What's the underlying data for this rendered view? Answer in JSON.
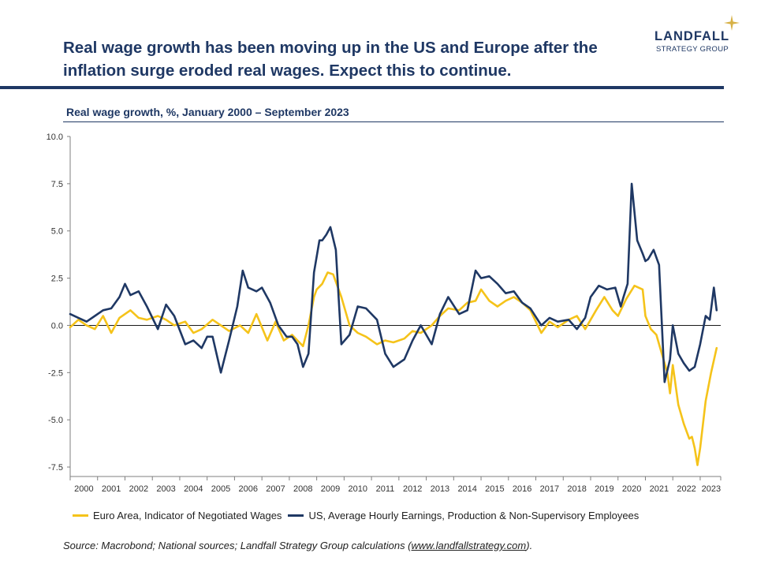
{
  "header": {
    "headline_line1": "Real wage growth has been moving up in the US and Europe after the",
    "headline_line2": "inflation surge eroded real wages.  Expect this to continue.",
    "logo_name": "LANDFALL",
    "logo_sub": "STRATEGY GROUP"
  },
  "colors": {
    "euro": "#f5c31a",
    "us": "#1f3864",
    "title": "#1f3864"
  },
  "chart_data": {
    "type": "line",
    "title": "Real wage growth, %, January 2000 – September 2023",
    "ylim": [
      -8.0,
      10.0
    ],
    "xlim": [
      2000.0,
      2023.75
    ],
    "yticks": [
      10.0,
      7.5,
      5.0,
      2.5,
      0.0,
      -2.5,
      -5.0,
      -7.5
    ],
    "ytick_labels": [
      "10.0",
      "7.5",
      "5.0",
      "2.5",
      "0.0",
      "-2.5",
      "-5.0",
      "-7.5"
    ],
    "xtick_labels": [
      "2000",
      "2001",
      "2002",
      "2003",
      "2004",
      "2005",
      "2006",
      "2007",
      "2008",
      "2009",
      "2010",
      "2011",
      "2012",
      "2013",
      "2014",
      "2015",
      "2016",
      "2017",
      "2018",
      "2019",
      "2020",
      "2021",
      "2022",
      "2023"
    ],
    "legend_position": "bottom",
    "series": [
      {
        "name": "Euro Area, Indicator of Negotiated Wages",
        "color": "#f5c31a",
        "x": [
          2000.0,
          2000.3,
          2000.6,
          2000.9,
          2001.2,
          2001.5,
          2001.8,
          2002.2,
          2002.5,
          2002.8,
          2003.2,
          2003.5,
          2003.8,
          2004.2,
          2004.5,
          2004.8,
          2005.2,
          2005.5,
          2005.8,
          2006.2,
          2006.5,
          2006.8,
          2007.2,
          2007.5,
          2007.8,
          2008.1,
          2008.3,
          2008.5,
          2008.7,
          2008.9,
          2009.0,
          2009.2,
          2009.4,
          2009.6,
          2009.9,
          2010.2,
          2010.5,
          2010.8,
          2011.2,
          2011.5,
          2011.8,
          2012.2,
          2012.5,
          2012.8,
          2013.2,
          2013.5,
          2013.8,
          2014.2,
          2014.5,
          2014.8,
          2015.0,
          2015.3,
          2015.6,
          2015.9,
          2016.2,
          2016.5,
          2016.8,
          2017.2,
          2017.5,
          2017.8,
          2018.2,
          2018.5,
          2018.8,
          2019.2,
          2019.5,
          2019.8,
          2020.0,
          2020.3,
          2020.6,
          2020.9,
          2021.0,
          2021.2,
          2021.4,
          2021.6,
          2021.8,
          2021.9,
          2022.0,
          2022.2,
          2022.4,
          2022.6,
          2022.7,
          2022.8,
          2022.9,
          2023.0,
          2023.2,
          2023.4,
          2023.6
        ],
        "y": [
          -0.1,
          0.3,
          0.0,
          -0.2,
          0.5,
          -0.4,
          0.4,
          0.8,
          0.4,
          0.3,
          0.5,
          0.3,
          0.0,
          0.2,
          -0.4,
          -0.2,
          0.3,
          0.0,
          -0.3,
          0.0,
          -0.4,
          0.6,
          -0.8,
          0.2,
          -0.8,
          -0.5,
          -0.8,
          -1.1,
          0.0,
          1.5,
          1.9,
          2.2,
          2.8,
          2.7,
          1.5,
          0.0,
          -0.4,
          -0.6,
          -1.0,
          -0.8,
          -0.9,
          -0.7,
          -0.3,
          -0.4,
          0.0,
          0.5,
          0.9,
          0.8,
          1.2,
          1.3,
          1.9,
          1.3,
          1.0,
          1.3,
          1.5,
          1.2,
          0.8,
          -0.4,
          0.2,
          -0.1,
          0.3,
          0.5,
          -0.2,
          0.8,
          1.5,
          0.8,
          0.5,
          1.4,
          2.1,
          1.9,
          0.5,
          -0.2,
          -0.5,
          -1.5,
          -2.5,
          -3.6,
          -2.1,
          -4.2,
          -5.2,
          -6.0,
          -5.9,
          -6.5,
          -7.4,
          -6.5,
          -4.0,
          -2.5,
          -1.2
        ]
      },
      {
        "name": "US, Average Hourly Earnings, Production & Non-Supervisory Employees",
        "color": "#1f3864",
        "x": [
          2000.0,
          2000.3,
          2000.6,
          2000.9,
          2001.2,
          2001.5,
          2001.8,
          2002.0,
          2002.2,
          2002.5,
          2002.8,
          2003.2,
          2003.5,
          2003.8,
          2004.2,
          2004.5,
          2004.8,
          2005.0,
          2005.2,
          2005.5,
          2005.8,
          2006.1,
          2006.3,
          2006.5,
          2006.8,
          2007.0,
          2007.3,
          2007.6,
          2007.9,
          2008.1,
          2008.3,
          2008.5,
          2008.7,
          2008.9,
          2009.1,
          2009.2,
          2009.35,
          2009.5,
          2009.7,
          2009.9,
          2010.2,
          2010.5,
          2010.8,
          2011.2,
          2011.5,
          2011.8,
          2012.2,
          2012.5,
          2012.8,
          2013.2,
          2013.5,
          2013.8,
          2014.2,
          2014.5,
          2014.8,
          2015.0,
          2015.3,
          2015.6,
          2015.9,
          2016.2,
          2016.5,
          2016.8,
          2017.2,
          2017.5,
          2017.8,
          2018.2,
          2018.5,
          2018.8,
          2019.0,
          2019.3,
          2019.6,
          2019.9,
          2020.0,
          2020.1,
          2020.2,
          2020.35,
          2020.5,
          2020.7,
          2020.9,
          2021.0,
          2021.1,
          2021.3,
          2021.5,
          2021.7,
          2021.9,
          2022.0,
          2022.2,
          2022.4,
          2022.6,
          2022.8,
          2023.0,
          2023.2,
          2023.35,
          2023.5,
          2023.6
        ],
        "y": [
          0.6,
          0.4,
          0.2,
          0.5,
          0.8,
          0.9,
          1.5,
          2.2,
          1.6,
          1.8,
          1.0,
          -0.2,
          1.1,
          0.5,
          -1.0,
          -0.8,
          -1.2,
          -0.6,
          -0.6,
          -2.5,
          -0.8,
          1.0,
          2.9,
          2.0,
          1.8,
          2.0,
          1.2,
          0.0,
          -0.6,
          -0.6,
          -1.0,
          -2.2,
          -1.5,
          2.8,
          4.5,
          4.5,
          4.8,
          5.2,
          4.0,
          -1.0,
          -0.5,
          1.0,
          0.9,
          0.3,
          -1.5,
          -2.2,
          -1.8,
          -0.8,
          0.0,
          -1.0,
          0.6,
          1.5,
          0.6,
          0.8,
          2.9,
          2.5,
          2.6,
          2.2,
          1.7,
          1.8,
          1.2,
          0.9,
          0.0,
          0.4,
          0.2,
          0.3,
          -0.2,
          0.4,
          1.5,
          2.1,
          1.9,
          2.0,
          1.5,
          1.0,
          1.5,
          2.2,
          7.5,
          4.5,
          3.8,
          3.4,
          3.5,
          4.0,
          3.2,
          -3.0,
          -1.8,
          0.0,
          -1.5,
          -2.0,
          -2.4,
          -2.2,
          -1.0,
          0.5,
          0.3,
          2.0,
          0.8
        ]
      }
    ]
  },
  "legend": {
    "euro_label": "Euro Area, Indicator of Negotiated Wages",
    "us_label": "US, Average Hourly Earnings, Production & Non-Supervisory Employees"
  },
  "source": {
    "text": "Source: Macrobond; National sources; Landfall Strategy Group calculations (",
    "link": "www.landfallstrategy.com",
    "end": ")."
  }
}
